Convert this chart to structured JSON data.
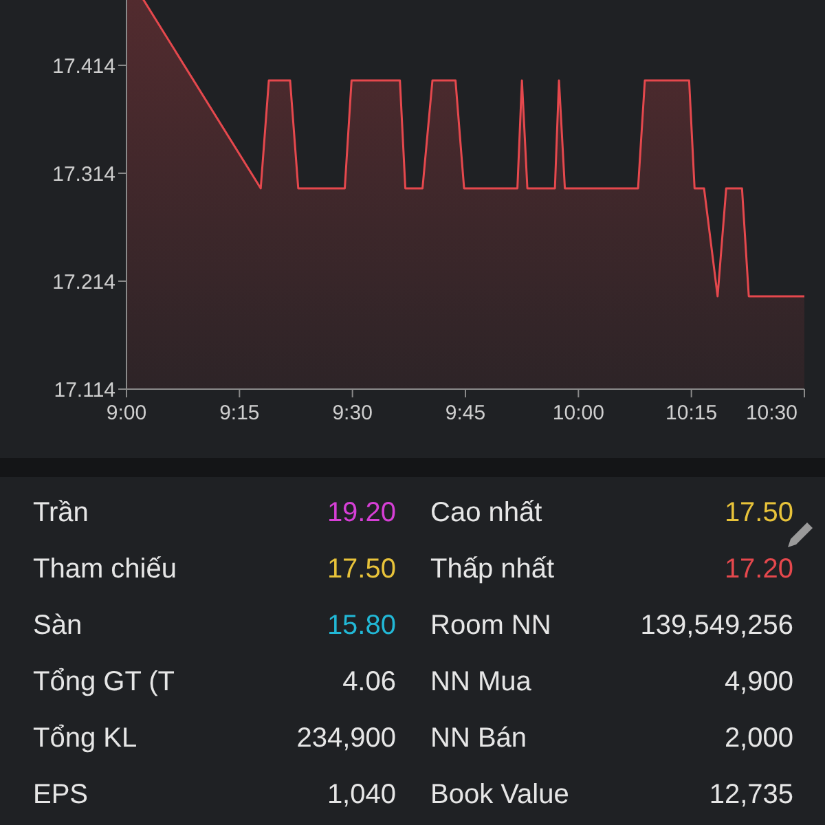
{
  "chart_data": [
    {
      "type": "area",
      "x": [
        9,
        9.297,
        9.315,
        9.362,
        9.38,
        9.483,
        9.498,
        9.605,
        9.617,
        9.655,
        9.677,
        9.728,
        9.747,
        9.865,
        9.875,
        9.887,
        9.948,
        9.957,
        9.97,
        10.132,
        10.147,
        10.245,
        10.257,
        10.278,
        10.308,
        10.327,
        10.362,
        10.377,
        10.5
      ],
      "values": [
        17.5,
        17.3,
        17.4,
        17.4,
        17.3,
        17.3,
        17.4,
        17.4,
        17.3,
        17.3,
        17.4,
        17.4,
        17.3,
        17.3,
        17.4,
        17.3,
        17.3,
        17.4,
        17.3,
        17.3,
        17.4,
        17.4,
        17.3,
        17.3,
        17.2,
        17.3,
        17.3,
        17.2,
        17.2
      ],
      "color": "#e5484d",
      "ylim": [
        17.114,
        17.514
      ],
      "yticks": [
        17.114,
        17.214,
        17.314,
        17.414
      ],
      "xlim": [
        9,
        10.5
      ],
      "xticks": [
        {
          "value": 9,
          "label": "9:00"
        },
        {
          "value": 9.25,
          "label": "9:15"
        },
        {
          "value": 9.5,
          "label": "9:30"
        },
        {
          "value": 9.75,
          "label": "9:45"
        },
        {
          "value": 10,
          "label": "10:00"
        },
        {
          "value": 10.25,
          "label": "10:15"
        },
        {
          "value": 10.5,
          "label": "10:30"
        }
      ]
    },
    {
      "type": "other",
      "categories": [
        "Trần",
        "Cao nhất",
        "Tham chiếu",
        "Thấp nhất",
        "Sàn",
        "Room NN",
        "Tổng GT (T",
        "NN Mua",
        "Tổng KL",
        "NN Bán",
        "EPS",
        "Book Value"
      ],
      "value_labels": [
        "19.20",
        "17.50",
        "17.50",
        "17.20",
        "15.80",
        "139,549,256",
        "4.06",
        "4,900",
        "234,900",
        "2,000",
        "1,040",
        "12,735"
      ],
      "colors": [
        "#d63fd6",
        "#e8c33a",
        "#e8c33a",
        "#e5484d",
        "#22b8d6",
        "#e6e6e6",
        "#e6e6e6",
        "#e6e6e6",
        "#e6e6e6",
        "#e6e6e6",
        "#e6e6e6",
        "#e6e6e6"
      ]
    }
  ]
}
